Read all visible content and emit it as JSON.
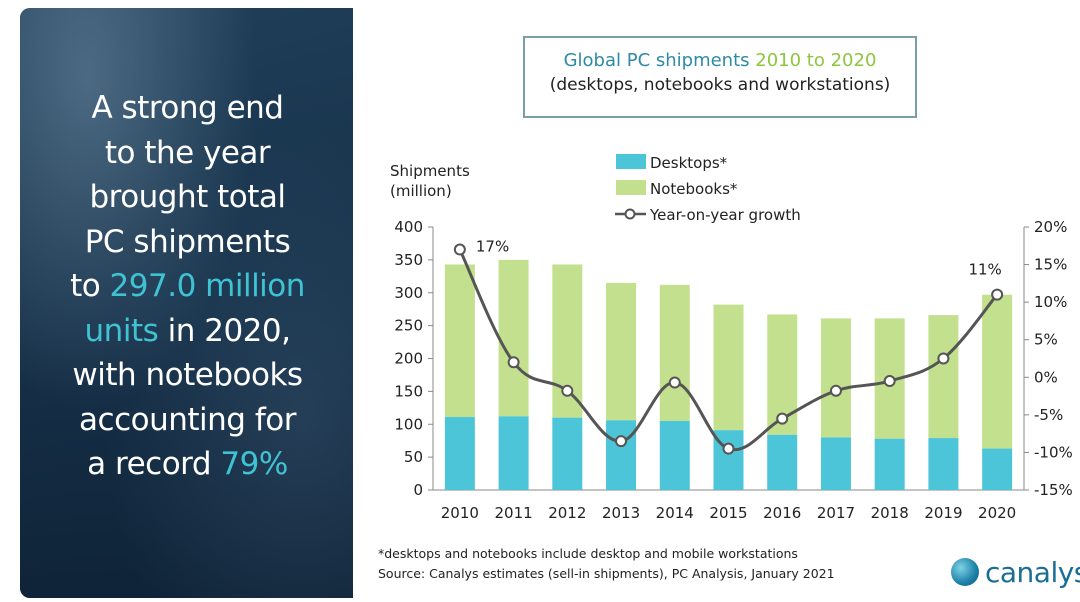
{
  "headline": {
    "line1": "A strong end",
    "line2": "to the year",
    "line3": "brought total",
    "line4": "PC shipments",
    "line5_pre": "to ",
    "line5_hl": "297.0 million",
    "line6_hl": "units",
    "line6_post": " in 2020,",
    "line7": "with notebooks",
    "line8": "accounting for",
    "line9_pre": "a record ",
    "line9_hl": "79%"
  },
  "colors": {
    "desktops": "#4dc5d8",
    "notebooks": "#c2e08d",
    "growth_line": "#555555",
    "accent_teal": "#3fc3d3",
    "title_blue": "#2f8aa6",
    "title_green": "#8dc63f"
  },
  "chart_data": {
    "type": "bar",
    "title_part1": "Global PC shipments",
    "title_part2": "2010 to 2020",
    "subtitle": "(desktops, notebooks and workstations)",
    "ylabel_line1": "Shipments",
    "ylabel_line2": "(million)",
    "categories": [
      "2010",
      "2011",
      "2012",
      "2013",
      "2014",
      "2015",
      "2016",
      "2017",
      "2018",
      "2019",
      "2020"
    ],
    "stacked": true,
    "series": [
      {
        "name": "Desktops*",
        "values": [
          111,
          112,
          110,
          106,
          105,
          91,
          84,
          80,
          78,
          79,
          63
        ]
      },
      {
        "name": "Notebooks*",
        "values": [
          232,
          238,
          233,
          209,
          207,
          191,
          183,
          181,
          183,
          187,
          234
        ]
      }
    ],
    "growth": {
      "name": "Year-on-year growth",
      "values": [
        17,
        2,
        -1.8,
        -8.5,
        -0.7,
        -9.5,
        -5.5,
        -1.8,
        -0.5,
        2.5,
        11
      ]
    },
    "annotations": [
      {
        "category": "2010",
        "text": "17%"
      },
      {
        "category": "2020",
        "text": "11%"
      }
    ],
    "ylim": [
      0,
      400
    ],
    "yticks": [
      0,
      50,
      100,
      150,
      200,
      250,
      300,
      350,
      400
    ],
    "y2lim": [
      -15,
      20
    ],
    "y2ticks": [
      "-15%",
      "-10%",
      "-5%",
      "0%",
      "5%",
      "10%",
      "15%",
      "20%"
    ],
    "legend_position": "top-center",
    "grid": false
  },
  "footnote": "*desktops and notebooks include desktop and mobile workstations",
  "source": "Source: Canalys estimates (sell-in shipments), PC Analysis, January 2021",
  "logo_text": "canalys"
}
